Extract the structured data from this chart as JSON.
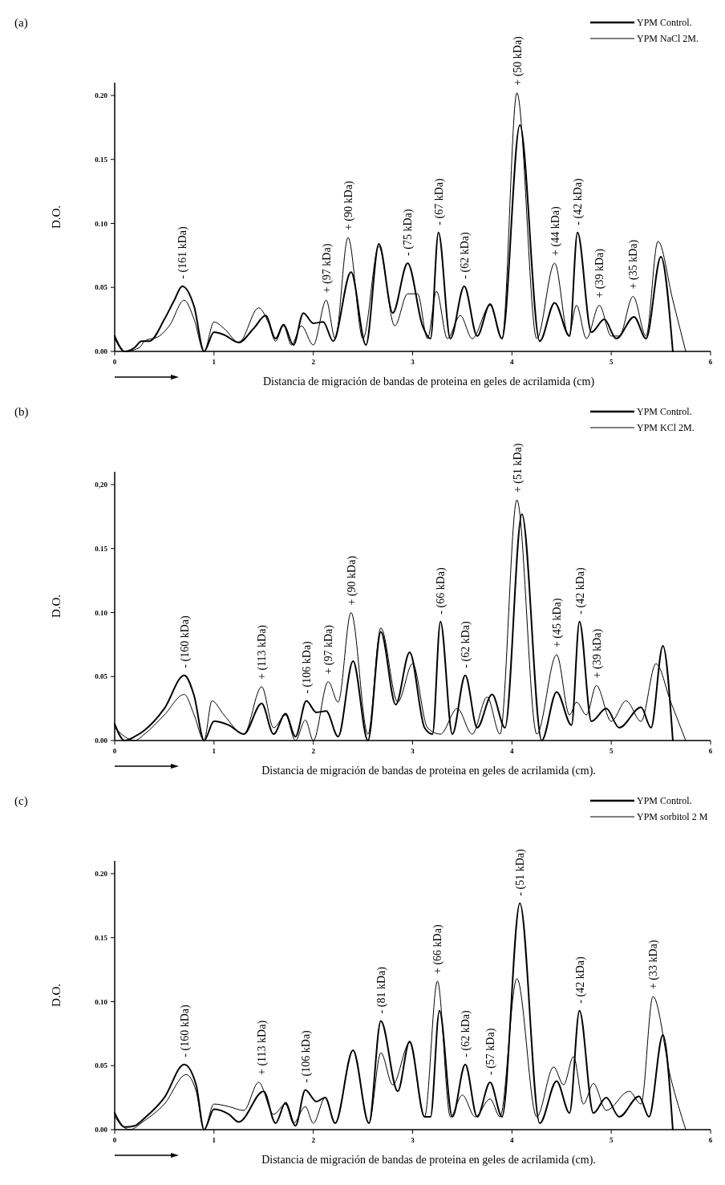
{
  "chart_data": [
    {
      "type": "line",
      "title": "(a)",
      "xlabel": "Distancia de migración de bandas de proteina en geles de acrilamida (cm)",
      "ylabel": "D.O.",
      "xlim": [
        0,
        6
      ],
      "xticks": [
        0,
        1,
        2,
        3,
        4,
        5,
        6
      ],
      "ylim": [
        0,
        0.21
      ],
      "yticks": [
        {
          "value": 0,
          "label": "0.00"
        },
        {
          "value": 0.05,
          "label": "0.05"
        },
        {
          "value": 0.1,
          "label": "0.10"
        },
        {
          "value": 0.15,
          "label": "0.15"
        },
        {
          "value": 0.2,
          "label": "0.20"
        }
      ],
      "legend": "top right",
      "series": [
        {
          "name": "YPM Control.",
          "color": "#000000",
          "x": [
            0,
            0.1,
            0.2,
            0.27,
            0.35,
            0.5,
            0.6,
            0.68,
            0.8,
            0.9,
            1.0,
            1.1,
            1.25,
            1.4,
            1.52,
            1.62,
            1.7,
            1.8,
            1.9,
            2.0,
            2.1,
            2.2,
            2.38,
            2.53,
            2.66,
            2.8,
            2.95,
            3.1,
            3.18,
            3.26,
            3.38,
            3.52,
            3.65,
            3.78,
            3.9,
            4.08,
            4.28,
            4.43,
            4.58,
            4.66,
            4.8,
            4.93,
            5.05,
            5.23,
            5.35,
            5.5,
            5.62
          ],
          "values": [
            0.012,
            0,
            0.003,
            0.008,
            0.008,
            0.025,
            0.04,
            0.051,
            0.035,
            0,
            0.015,
            0.013,
            0.007,
            0.018,
            0.028,
            0.01,
            0.021,
            0.005,
            0.03,
            0.022,
            0.023,
            0.008,
            0.062,
            0.005,
            0.084,
            0.03,
            0.069,
            0.02,
            0.01,
            0.093,
            0.01,
            0.051,
            0.012,
            0.037,
            0.01,
            0.177,
            0.008,
            0.038,
            0.012,
            0.093,
            0.015,
            0.025,
            0.01,
            0.027,
            0.01,
            0.074,
            0
          ]
        },
        {
          "name": "YPM NaCl 2M.",
          "color": "#000000",
          "x": [
            0,
            0.1,
            0.25,
            0.3,
            0.45,
            0.55,
            0.7,
            0.8,
            0.9,
            1.0,
            1.1,
            1.25,
            1.45,
            1.55,
            1.62,
            1.7,
            1.78,
            1.88,
            2.0,
            2.13,
            2.22,
            2.35,
            2.5,
            2.66,
            2.82,
            2.95,
            3.05,
            3.15,
            3.24,
            3.35,
            3.48,
            3.6,
            3.78,
            3.9,
            4.05,
            4.25,
            4.43,
            4.57,
            4.65,
            4.75,
            4.88,
            5.0,
            5.08,
            5.22,
            5.35,
            5.47,
            5.62,
            5.75
          ],
          "values": [
            0.01,
            0,
            0.003,
            0.008,
            0.012,
            0.02,
            0.04,
            0.025,
            0,
            0.023,
            0.018,
            0.007,
            0.034,
            0.022,
            0.008,
            0.02,
            0.005,
            0.02,
            0.005,
            0.04,
            0.01,
            0.089,
            0.01,
            0.082,
            0.02,
            0.045,
            0.045,
            0.01,
            0.047,
            0.01,
            0.028,
            0.01,
            0.036,
            0.01,
            0.202,
            0.01,
            0.069,
            0.012,
            0.036,
            0.01,
            0.036,
            0.012,
            0.012,
            0.043,
            0.012,
            0.086,
            0.04,
            0
          ]
        }
      ],
      "annotations": [
        {
          "text": "- (161 kDa)",
          "x": 0.68,
          "y": 0.051
        },
        {
          "text": "+ (97 kDa)",
          "x": 2.13,
          "y": 0.04
        },
        {
          "text": "+ (90 kDa)",
          "x": 2.35,
          "y": 0.089
        },
        {
          "text": "- (75 kDa)",
          "x": 2.95,
          "y": 0.069
        },
        {
          "text": "- (67 kDa)",
          "x": 3.26,
          "y": 0.093
        },
        {
          "text": "- (62 kDa)",
          "x": 3.52,
          "y": 0.051
        },
        {
          "text": "+ (50 kDa)",
          "x": 4.05,
          "y": 0.202
        },
        {
          "text": "+ (44 kDa)",
          "x": 4.43,
          "y": 0.069
        },
        {
          "text": "- (42 kDa)",
          "x": 4.66,
          "y": 0.093
        },
        {
          "text": "+ (39 kDa)",
          "x": 4.88,
          "y": 0.036
        },
        {
          "text": "+ (35 kDa)",
          "x": 5.22,
          "y": 0.043
        }
      ]
    },
    {
      "type": "line",
      "title": "(b)",
      "xlabel": "Distancia de migración de bandas de proteina en geles de acrilamida (cm).",
      "ylabel": "D.O.",
      "xlim": [
        0,
        6
      ],
      "xticks": [
        0,
        1,
        2,
        3,
        4,
        5,
        6
      ],
      "ylim": [
        0,
        0.21
      ],
      "yticks": [
        {
          "value": 0,
          "label": "0.00"
        },
        {
          "value": 0.05,
          "label": "0.05"
        },
        {
          "value": 0.1,
          "label": "0.10"
        },
        {
          "value": 0.15,
          "label": "0.15"
        },
        {
          "value": 0.2,
          "label": "0,20"
        }
      ],
      "legend": "top right",
      "series": [
        {
          "name": "YPM Control.",
          "color": "#000000",
          "x": [
            0,
            0.1,
            0.2,
            0.3,
            0.5,
            0.7,
            0.8,
            0.9,
            1.0,
            1.15,
            1.3,
            1.48,
            1.6,
            1.72,
            1.82,
            1.93,
            2.03,
            2.13,
            2.25,
            2.4,
            2.55,
            2.68,
            2.83,
            2.97,
            3.12,
            3.2,
            3.28,
            3.4,
            3.53,
            3.65,
            3.8,
            3.93,
            4.1,
            4.3,
            4.45,
            4.6,
            4.68,
            4.8,
            4.95,
            5.08,
            5.3,
            5.4,
            5.52,
            5.62
          ],
          "values": [
            0.013,
            0,
            0.003,
            0.008,
            0.025,
            0.051,
            0.035,
            0,
            0.015,
            0.012,
            0.005,
            0.029,
            0.005,
            0.021,
            0.003,
            0.031,
            0.022,
            0.023,
            0.003,
            0.062,
            0,
            0.085,
            0.028,
            0.069,
            0.01,
            0.005,
            0.093,
            0.005,
            0.051,
            0.01,
            0.036,
            0.01,
            0.177,
            0,
            0.038,
            0.012,
            0.093,
            0.015,
            0.025,
            0.01,
            0.026,
            0.01,
            0.074,
            0
          ]
        },
        {
          "name": "YPM KCl 2M.",
          "color": "#000000",
          "x": [
            0,
            0.2,
            0.3,
            0.5,
            0.7,
            0.8,
            0.9,
            0.98,
            1.1,
            1.3,
            1.48,
            1.6,
            1.72,
            1.82,
            1.92,
            2.0,
            2.15,
            2.25,
            2.38,
            2.55,
            2.68,
            2.85,
            3.0,
            3.15,
            3.28,
            3.45,
            3.6,
            3.75,
            3.88,
            4.05,
            4.25,
            4.45,
            4.58,
            4.65,
            4.75,
            4.85,
            5.0,
            5.15,
            5.3,
            5.45,
            5.6,
            5.75
          ],
          "values": [
            0.01,
            0,
            0.005,
            0.02,
            0.036,
            0.02,
            0,
            0.031,
            0.02,
            0.005,
            0.042,
            0.01,
            0.02,
            0,
            0.016,
            0,
            0.046,
            0.03,
            0.1,
            0.005,
            0.088,
            0.03,
            0.06,
            0.01,
            0.005,
            0.025,
            0.005,
            0.034,
            0.005,
            0.188,
            0.005,
            0.067,
            0.02,
            0.03,
            0.02,
            0.043,
            0.015,
            0.031,
            0.015,
            0.06,
            0.03,
            0
          ]
        }
      ],
      "annotations": [
        {
          "text": "- (160 kDa)",
          "x": 0.7,
          "y": 0.051
        },
        {
          "text": "+ (113 kDa)",
          "x": 1.48,
          "y": 0.042
        },
        {
          "text": "- (106 kDa)",
          "x": 1.93,
          "y": 0.031
        },
        {
          "text": "+ (97 kDa)",
          "x": 2.15,
          "y": 0.046
        },
        {
          "text": "+ (90 kDa)",
          "x": 2.38,
          "y": 0.1
        },
        {
          "text": "- (66 kDa)",
          "x": 3.28,
          "y": 0.093
        },
        {
          "text": "- (62 kDa)",
          "x": 3.53,
          "y": 0.051
        },
        {
          "text": "+ (51 kDa)",
          "x": 4.05,
          "y": 0.188
        },
        {
          "text": "+ (45 kDa)",
          "x": 4.45,
          "y": 0.067
        },
        {
          "text": "- (42 kDa)",
          "x": 4.68,
          "y": 0.093
        },
        {
          "text": "+ (39 kDa)",
          "x": 4.85,
          "y": 0.043
        }
      ]
    },
    {
      "type": "line",
      "title": "(c)",
      "xlabel": "Distancia de migración de bandas de proteina en geles de acrilamida (cm).",
      "ylabel": "D.O.",
      "xlim": [
        0,
        6
      ],
      "xticks": [
        0,
        1,
        2,
        3,
        4,
        5,
        6
      ],
      "ylim": [
        0,
        0.21
      ],
      "yticks": [
        {
          "value": 0,
          "label": "0.00"
        },
        {
          "value": 0.05,
          "label": "0.05"
        },
        {
          "value": 0.1,
          "label": "0.10"
        },
        {
          "value": 0.15,
          "label": "0.15"
        },
        {
          "value": 0.2,
          "label": "0.20"
        }
      ],
      "legend": "top right",
      "series": [
        {
          "name": "YPM Control.",
          "color": "#000000",
          "x": [
            0,
            0.1,
            0.2,
            0.3,
            0.5,
            0.7,
            0.82,
            0.9,
            1.0,
            1.15,
            1.25,
            1.5,
            1.62,
            1.72,
            1.82,
            1.92,
            2.03,
            2.12,
            2.22,
            2.4,
            2.56,
            2.68,
            2.85,
            2.97,
            3.12,
            3.18,
            3.27,
            3.4,
            3.53,
            3.65,
            3.78,
            3.9,
            4.08,
            4.28,
            4.45,
            4.58,
            4.68,
            4.82,
            4.95,
            5.08,
            5.28,
            5.38,
            5.52,
            5.62
          ],
          "values": [
            0.013,
            0.002,
            0.003,
            0.009,
            0.025,
            0.051,
            0.035,
            0,
            0.016,
            0.012,
            0.006,
            0.03,
            0.005,
            0.021,
            0.003,
            0.031,
            0.022,
            0.025,
            0.005,
            0.062,
            0.005,
            0.085,
            0.03,
            0.069,
            0.01,
            0.01,
            0.093,
            0.01,
            0.051,
            0.01,
            0.037,
            0.01,
            0.177,
            0.005,
            0.038,
            0.013,
            0.093,
            0.013,
            0.025,
            0.01,
            0.026,
            0.01,
            0.074,
            0
          ]
        },
        {
          "name": "YPM sorbitol 2 M",
          "color": "#000000",
          "x": [
            0,
            0.15,
            0.3,
            0.5,
            0.72,
            0.82,
            0.9,
            1.0,
            1.15,
            1.3,
            1.45,
            1.6,
            1.72,
            1.8,
            1.92,
            2.0,
            2.12,
            2.22,
            2.4,
            2.56,
            2.68,
            2.8,
            2.97,
            3.12,
            3.25,
            3.38,
            3.5,
            3.63,
            3.78,
            3.88,
            4.05,
            4.25,
            4.42,
            4.52,
            4.62,
            4.72,
            4.82,
            4.95,
            5.18,
            5.3,
            5.42,
            5.6,
            5.75
          ],
          "values": [
            0.01,
            0,
            0.007,
            0.02,
            0.043,
            0.03,
            0,
            0.02,
            0.018,
            0.015,
            0.037,
            0.012,
            0.02,
            0.005,
            0.018,
            0.005,
            0.025,
            0.005,
            0.062,
            0.005,
            0.06,
            0.035,
            0.068,
            0.01,
            0.116,
            0.01,
            0.027,
            0.01,
            0.024,
            0.01,
            0.118,
            0.01,
            0.049,
            0.035,
            0.057,
            0.02,
            0.036,
            0.015,
            0.03,
            0.02,
            0.104,
            0.04,
            0
          ]
        }
      ],
      "annotations": [
        {
          "text": "- (160 kDa)",
          "x": 0.7,
          "y": 0.051
        },
        {
          "text": "+ (113 kDa)",
          "x": 1.48,
          "y": 0.037
        },
        {
          "text": "- (106 kDa)",
          "x": 1.92,
          "y": 0.031
        },
        {
          "text": "- (81 kDa)",
          "x": 2.68,
          "y": 0.085
        },
        {
          "text": "+ (66 kDa)",
          "x": 3.25,
          "y": 0.116
        },
        {
          "text": "- (62 kDa)",
          "x": 3.53,
          "y": 0.051
        },
        {
          "text": "- (57 kDa)",
          "x": 3.78,
          "y": 0.037
        },
        {
          "text": "- (51 kDa)",
          "x": 4.08,
          "y": 0.177
        },
        {
          "text": "- (42 kDa)",
          "x": 4.68,
          "y": 0.093
        },
        {
          "text": "+ (33 kDa)",
          "x": 5.42,
          "y": 0.104
        }
      ]
    }
  ]
}
